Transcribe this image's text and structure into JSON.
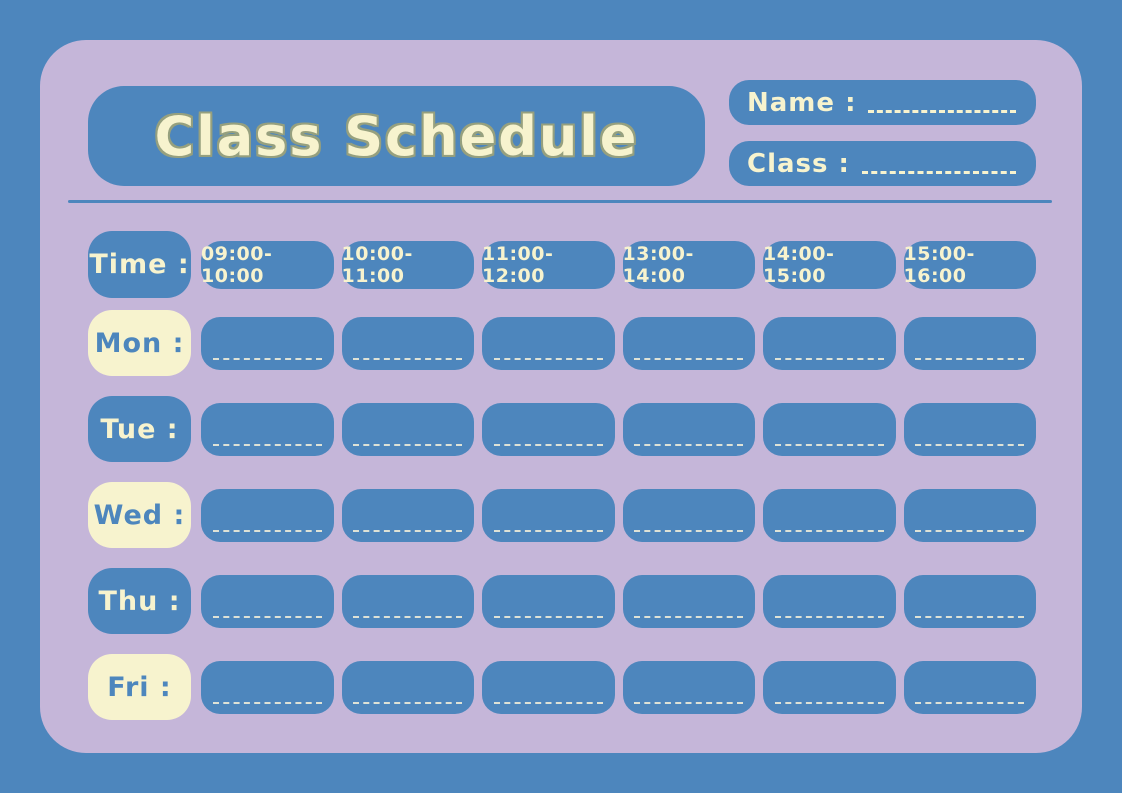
{
  "colors": {
    "background": "#4D86BD",
    "card": "#C5B6D9",
    "accent_blue": "#4D86BD",
    "cream": "#F7F3CE",
    "title_outline": "#96A07E",
    "cell_dash": "#DEE2D6"
  },
  "header": {
    "title": "Class Schedule"
  },
  "fields": {
    "name_label": "Name :",
    "class_label": "Class :"
  },
  "schedule": {
    "time_label": "Time :",
    "time_slots": [
      "09:00-10:00",
      "10:00-11:00",
      "11:00-12:00",
      "13:00-14:00",
      "14:00-15:00",
      "15:00-16:00"
    ],
    "days": [
      {
        "label": "Mon :"
      },
      {
        "label": "Tue :"
      },
      {
        "label": "Wed :"
      },
      {
        "label": "Thu :"
      },
      {
        "label": "Fri :"
      }
    ]
  }
}
